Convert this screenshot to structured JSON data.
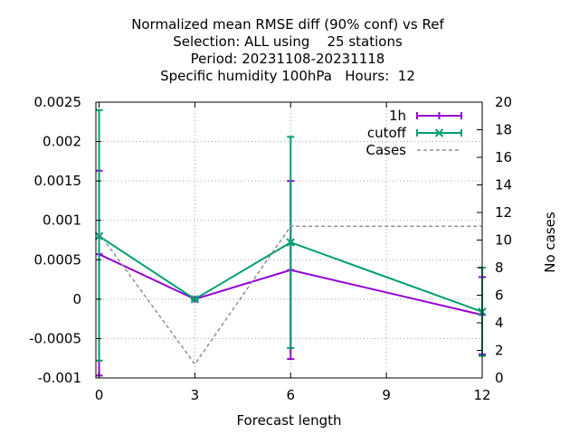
{
  "chart_data": {
    "type": "line",
    "title": [
      "Normalized mean RMSE diff (90% conf) vs Ref",
      "Selection: ALL using    25 stations",
      "Period: 20231108-20231118",
      "Specific humidity 100hPa   Hours:  12"
    ],
    "xlabel": "Forecast length",
    "ylabel": "",
    "y2label": "No cases",
    "xlim": [
      -0.1,
      12
    ],
    "ylim": [
      -0.001,
      0.0025
    ],
    "y2lim": [
      0,
      20
    ],
    "xticks": [
      0,
      3,
      6,
      9,
      12
    ],
    "xtick_labels": [
      "0",
      "3",
      "6",
      "9",
      "12"
    ],
    "yticks": [
      -0.001,
      -0.0005,
      0,
      0.0005,
      0.001,
      0.0015,
      0.002,
      0.0025
    ],
    "ytick_labels": [
      "-0.001",
      "-0.0005",
      "0",
      "0.0005",
      "0.001",
      "0.0015",
      "0.002",
      "0.0025"
    ],
    "y2ticks": [
      0,
      2,
      4,
      6,
      8,
      10,
      12,
      14,
      16,
      18,
      20
    ],
    "y2tick_labels": [
      "0",
      "2",
      "4",
      "6",
      "8",
      "10",
      "12",
      "14",
      "16",
      "18",
      "20"
    ],
    "grid": true,
    "legend_position": "top-right",
    "series": [
      {
        "name": "1h",
        "axis": "y",
        "style": "errorbars",
        "marker": "plus",
        "color": "#9400d3",
        "x": [
          0,
          3,
          6,
          12
        ],
        "y": [
          0.00057,
          0.0,
          0.00037,
          -0.0002
        ],
        "yerr_low": [
          -0.00097,
          -1e-05,
          -0.00076,
          -0.0007
        ],
        "yerr_high": [
          0.00163,
          1e-05,
          0.0015,
          0.00028
        ]
      },
      {
        "name": "cutoff",
        "axis": "y",
        "style": "errorbars",
        "marker": "x",
        "color": "#009e73",
        "x": [
          0,
          3,
          6,
          12
        ],
        "y": [
          0.0008,
          0.0,
          0.00072,
          -0.00016
        ],
        "yerr_low": [
          -0.00078,
          -1e-05,
          -0.00062,
          -0.00072
        ],
        "yerr_high": [
          0.0024,
          1e-05,
          0.00206,
          0.0004
        ]
      },
      {
        "name": "Cases",
        "axis": "y2",
        "style": "dashed",
        "color": "#909090",
        "x": [
          0,
          3,
          6,
          12
        ],
        "y": [
          10.5,
          1,
          11,
          11
        ]
      }
    ]
  }
}
